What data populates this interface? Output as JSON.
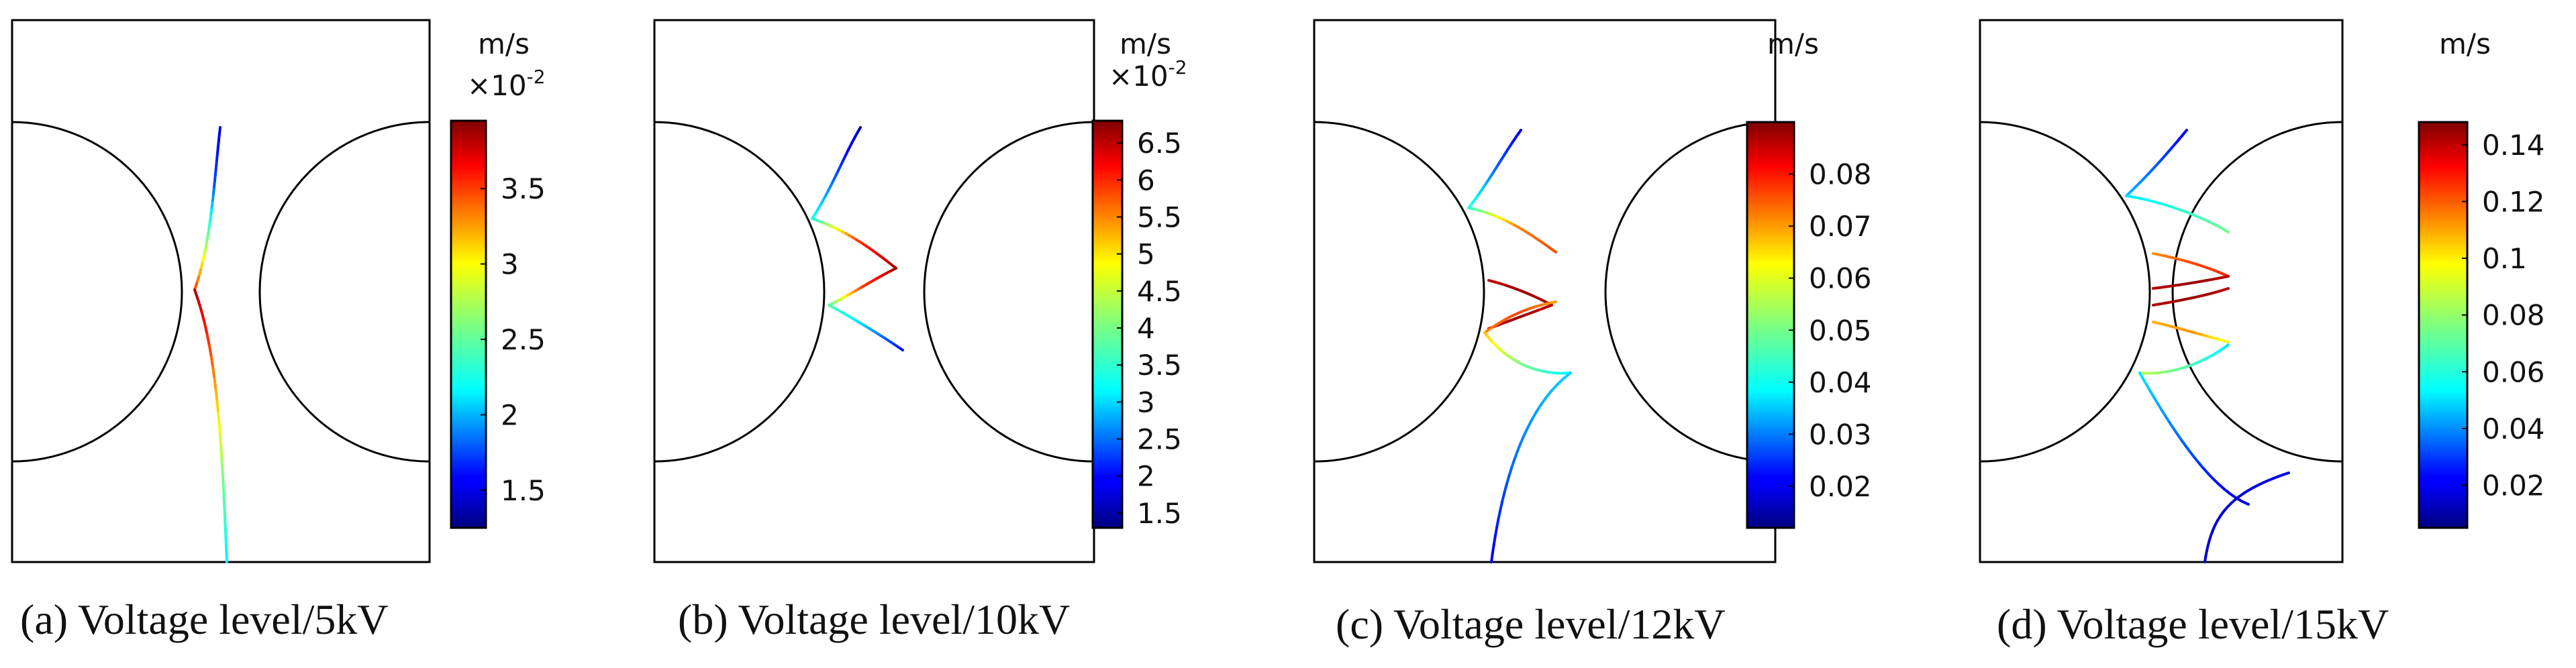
{
  "figure": {
    "panels": [
      {
        "id": "a",
        "caption": "(a) Voltage level/5kV",
        "colorbar": {
          "unit": "m/s",
          "multiplier": "×10",
          "exponent": "-2",
          "min": 1.25,
          "max": 3.95,
          "ticks": [
            "1.5",
            "2",
            "2.5",
            "3",
            "3.5"
          ],
          "tick_values": [
            1.5,
            2,
            2.5,
            3,
            3.5
          ]
        },
        "streamlines": [
          {
            "name": "upper-branch",
            "values": [
              1.5,
              1.8,
              2.6,
              3.5
            ]
          },
          {
            "name": "lower-branch",
            "values": [
              3.8,
              3.2,
              2.6,
              2.2
            ]
          }
        ]
      },
      {
        "id": "b",
        "caption": "(b) Voltage level/10kV",
        "colorbar": {
          "unit": "m/s",
          "multiplier": "×10",
          "exponent": "-2",
          "min": 1.3,
          "max": 6.8,
          "ticks": [
            "1.5",
            "2",
            "2.5",
            "3",
            "3.5",
            "4",
            "4.5",
            "5",
            "5.5",
            "6",
            "6.5"
          ],
          "tick_values": [
            1.5,
            2,
            2.5,
            3,
            3.5,
            4,
            4.5,
            5,
            5.5,
            6,
            6.5
          ]
        },
        "streamlines": [
          {
            "name": "top-branch",
            "values": [
              1.6,
              2.4,
              3.5
            ]
          },
          {
            "name": "upper-arc",
            "values": [
              3.5,
              5.8,
              6.6
            ]
          },
          {
            "name": "lower-arc",
            "values": [
              6.6,
              5.8,
              3.8
            ]
          },
          {
            "name": "bottom-branch",
            "values": [
              3.8,
              3.0,
              2.0
            ]
          }
        ]
      },
      {
        "id": "c",
        "caption": "(c) Voltage level/12kV",
        "colorbar": {
          "unit": "m/s",
          "min": 0.012,
          "max": 0.09,
          "ticks": [
            "0.02",
            "0.03",
            "0.04",
            "0.05",
            "0.06",
            "0.07",
            "0.08"
          ],
          "tick_values": [
            0.02,
            0.03,
            0.04,
            0.05,
            0.06,
            0.07,
            0.08
          ]
        },
        "streamlines": [
          {
            "name": "top-branch",
            "values": [
              0.02,
              0.03,
              0.045
            ]
          },
          {
            "name": "upper-arc",
            "values": [
              0.045,
              0.07,
              0.075
            ]
          },
          {
            "name": "mid-upper-arc",
            "values": [
              0.085,
              0.088,
              0.086
            ]
          },
          {
            "name": "mid-lower-arc",
            "values": [
              0.086,
              0.088,
              0.085
            ]
          },
          {
            "name": "lower-arc",
            "values": [
              0.07,
              0.075,
              0.068
            ]
          },
          {
            "name": "lower-link",
            "values": [
              0.065,
              0.05,
              0.04
            ]
          },
          {
            "name": "bottom-branch",
            "values": [
              0.038,
              0.03,
              0.02
            ]
          }
        ]
      },
      {
        "id": "d",
        "caption": "(d) Voltage level/15kV",
        "colorbar": {
          "unit": "m/s",
          "min": 0.005,
          "max": 0.148,
          "ticks": [
            "0.02",
            "0.04",
            "0.06",
            "0.08",
            "0.1",
            "0.12",
            "0.14"
          ],
          "tick_values": [
            0.02,
            0.04,
            0.06,
            0.08,
            0.1,
            0.12,
            0.14
          ]
        },
        "streamlines": [
          {
            "name": "top-branch",
            "values": [
              0.02,
              0.035,
              0.05
            ]
          },
          {
            "name": "top-arc",
            "values": [
              0.055,
              0.065,
              0.075
            ]
          },
          {
            "name": "upper-arc",
            "values": [
              0.11,
              0.12,
              0.125
            ]
          },
          {
            "name": "center-upper-arc",
            "values": [
              0.14,
              0.145,
              0.14
            ]
          },
          {
            "name": "center-lower-arc",
            "values": [
              0.14,
              0.145,
              0.14
            ]
          },
          {
            "name": "lower-arc",
            "values": [
              0.105,
              0.11,
              0.09
            ]
          },
          {
            "name": "bottom-arc",
            "values": [
              0.085,
              0.07,
              0.055
            ]
          },
          {
            "name": "lower-link",
            "values": [
              0.055,
              0.035,
              0.015
            ]
          },
          {
            "name": "bottom-branch",
            "values": [
              0.015,
              0.018,
              0.02
            ]
          }
        ]
      }
    ]
  }
}
